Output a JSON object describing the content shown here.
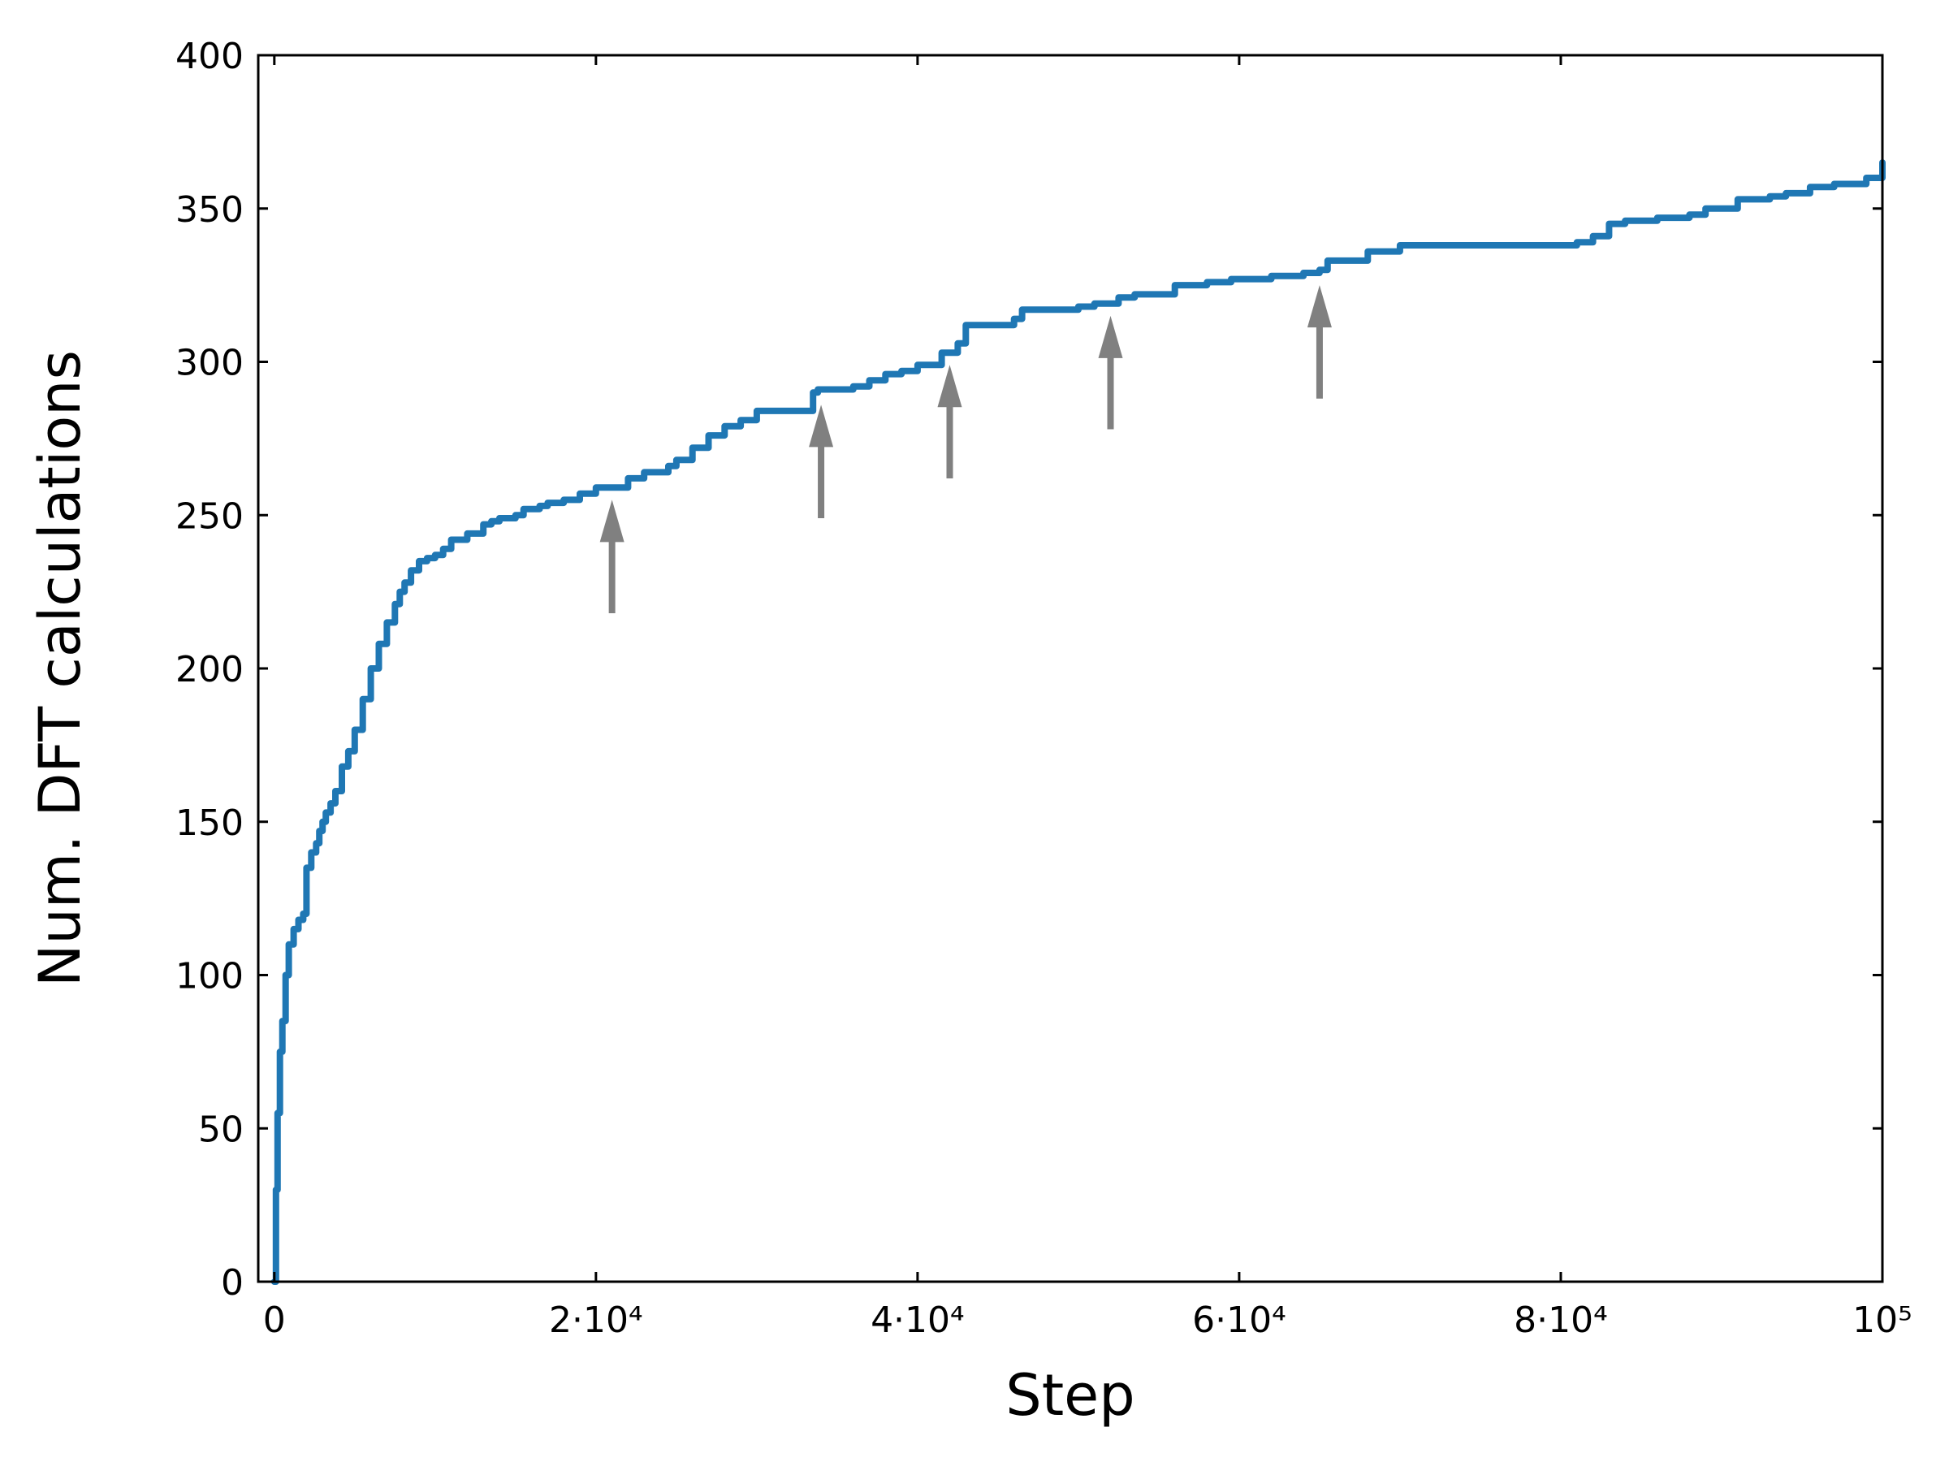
{
  "chart_data": {
    "type": "line",
    "xlabel": "Step",
    "ylabel": "Num. DFT calculations",
    "xlim": [
      -1000,
      100000
    ],
    "ylim": [
      0,
      400
    ],
    "grid": false,
    "x_ticks": [
      {
        "value": 0,
        "label": "0"
      },
      {
        "value": 20000,
        "label": "2·10⁴"
      },
      {
        "value": 40000,
        "label": "4·10⁴"
      },
      {
        "value": 60000,
        "label": "6·10⁴"
      },
      {
        "value": 80000,
        "label": "8·10⁴"
      },
      {
        "value": 100000,
        "label": "10⁵"
      }
    ],
    "y_ticks": [
      {
        "value": 0,
        "label": "0"
      },
      {
        "value": 50,
        "label": "50"
      },
      {
        "value": 100,
        "label": "100"
      },
      {
        "value": 150,
        "label": "150"
      },
      {
        "value": 200,
        "label": "200"
      },
      {
        "value": 250,
        "label": "250"
      },
      {
        "value": 300,
        "label": "300"
      },
      {
        "value": 350,
        "label": "350"
      },
      {
        "value": 400,
        "label": "400"
      }
    ],
    "series": [
      {
        "color": "#1f77b4",
        "step": true,
        "x": [
          0,
          100,
          200,
          350,
          500,
          700,
          900,
          1200,
          1500,
          1800,
          2000,
          2300,
          2600,
          2800,
          3000,
          3200,
          3500,
          3800,
          4200,
          4600,
          5000,
          5500,
          6000,
          6500,
          7000,
          7500,
          7800,
          8100,
          8500,
          9000,
          9500,
          10000,
          10500,
          11000,
          12000,
          13000,
          13500,
          14000,
          15000,
          15500,
          16000,
          16500,
          17000,
          18000,
          19000,
          20000,
          22000,
          23000,
          24500,
          25000,
          26000,
          27000,
          28000,
          29000,
          30000,
          32000,
          33500,
          33800,
          35000,
          36000,
          37000,
          38000,
          39000,
          40000,
          41500,
          42500,
          43000,
          46000,
          46500,
          50000,
          51000,
          52500,
          53500,
          56000,
          58000,
          59500,
          62000,
          64000,
          65000,
          65500,
          68000,
          70000,
          72000,
          79000,
          81000,
          82000,
          83000,
          84000,
          86000,
          88000,
          89000,
          91000,
          93000,
          94000,
          95500,
          97000,
          99000,
          100000
        ],
        "y": [
          0,
          30,
          55,
          75,
          85,
          100,
          110,
          115,
          118,
          120,
          135,
          140,
          143,
          147,
          150,
          153,
          156,
          160,
          168,
          173,
          180,
          190,
          200,
          208,
          215,
          221,
          225,
          228,
          232,
          235,
          236,
          237,
          239,
          242,
          244,
          247,
          248,
          249,
          250,
          252,
          252,
          253,
          254,
          255,
          257,
          259,
          262,
          264,
          266,
          268,
          272,
          276,
          279,
          281,
          284,
          284,
          290,
          291,
          291,
          292,
          294,
          296,
          297,
          299,
          303,
          306,
          312,
          314,
          317,
          318,
          319,
          321,
          322,
          325,
          326,
          327,
          328,
          329,
          330,
          333,
          336,
          338,
          338,
          338,
          339,
          341,
          345,
          346,
          347,
          348,
          350,
          353,
          354,
          355,
          357,
          358,
          360,
          365
        ]
      }
    ],
    "annotations": [
      {
        "type": "arrow",
        "x": 21000,
        "y_tail": 218,
        "y_head": 255,
        "color": "#808080"
      },
      {
        "type": "arrow",
        "x": 34000,
        "y_tail": 249,
        "y_head": 286,
        "color": "#808080"
      },
      {
        "type": "arrow",
        "x": 42000,
        "y_tail": 262,
        "y_head": 299,
        "color": "#808080"
      },
      {
        "type": "arrow",
        "x": 52000,
        "y_tail": 278,
        "y_head": 315,
        "color": "#808080"
      },
      {
        "type": "arrow",
        "x": 65000,
        "y_tail": 288,
        "y_head": 325,
        "color": "#808080"
      }
    ]
  }
}
